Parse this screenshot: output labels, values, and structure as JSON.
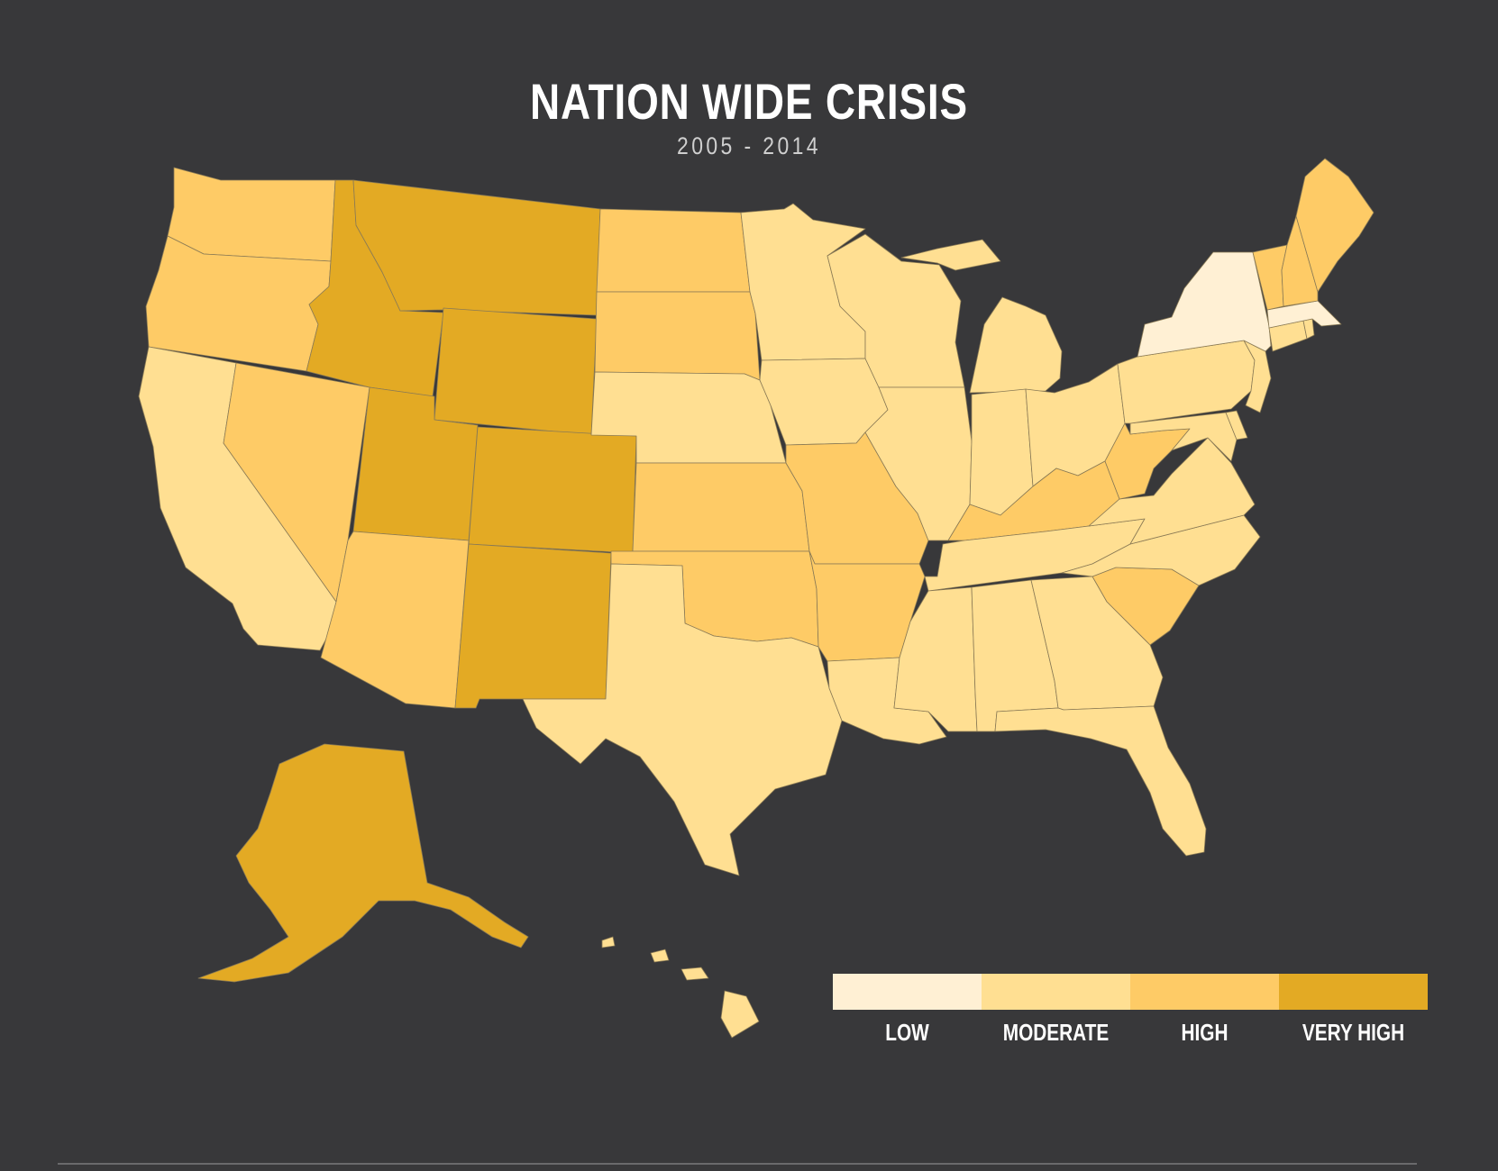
{
  "header": {
    "title": "NATION WIDE CRISIS",
    "subtitle": "2005 - 2014"
  },
  "background_color": "#38383a",
  "levels": {
    "LOW": "#fff0d4",
    "MODERATE": "#ffdf92",
    "HIGH": "#fecb66",
    "VERY HIGH": "#e3aa24"
  },
  "legend": {
    "items": [
      {
        "label": "LOW",
        "color": "#fff0d4"
      },
      {
        "label": "MODERATE",
        "color": "#ffdf92"
      },
      {
        "label": "HIGH",
        "color": "#fecb66"
      },
      {
        "label": "VERY HIGH",
        "color": "#e3aa24"
      }
    ]
  },
  "states": [
    {
      "name": "Washington",
      "level": "HIGH"
    },
    {
      "name": "Oregon",
      "level": "HIGH"
    },
    {
      "name": "California",
      "level": "MODERATE"
    },
    {
      "name": "Nevada",
      "level": "HIGH"
    },
    {
      "name": "Idaho",
      "level": "VERY HIGH"
    },
    {
      "name": "Montana",
      "level": "VERY HIGH"
    },
    {
      "name": "Wyoming",
      "level": "VERY HIGH"
    },
    {
      "name": "Utah",
      "level": "VERY HIGH"
    },
    {
      "name": "Colorado",
      "level": "VERY HIGH"
    },
    {
      "name": "Arizona",
      "level": "HIGH"
    },
    {
      "name": "New Mexico",
      "level": "VERY HIGH"
    },
    {
      "name": "North Dakota",
      "level": "HIGH"
    },
    {
      "name": "South Dakota",
      "level": "HIGH"
    },
    {
      "name": "Nebraska",
      "level": "MODERATE"
    },
    {
      "name": "Kansas",
      "level": "HIGH"
    },
    {
      "name": "Oklahoma",
      "level": "HIGH"
    },
    {
      "name": "Texas",
      "level": "MODERATE"
    },
    {
      "name": "Minnesota",
      "level": "MODERATE"
    },
    {
      "name": "Iowa",
      "level": "MODERATE"
    },
    {
      "name": "Missouri",
      "level": "HIGH"
    },
    {
      "name": "Arkansas",
      "level": "HIGH"
    },
    {
      "name": "Louisiana",
      "level": "MODERATE"
    },
    {
      "name": "Wisconsin",
      "level": "MODERATE"
    },
    {
      "name": "Illinois",
      "level": "MODERATE"
    },
    {
      "name": "Michigan",
      "level": "MODERATE"
    },
    {
      "name": "Indiana",
      "level": "MODERATE"
    },
    {
      "name": "Ohio",
      "level": "MODERATE"
    },
    {
      "name": "Kentucky",
      "level": "HIGH"
    },
    {
      "name": "Tennessee",
      "level": "MODERATE"
    },
    {
      "name": "Mississippi",
      "level": "MODERATE"
    },
    {
      "name": "Alabama",
      "level": "MODERATE"
    },
    {
      "name": "Georgia",
      "level": "MODERATE"
    },
    {
      "name": "Florida",
      "level": "MODERATE"
    },
    {
      "name": "South Carolina",
      "level": "HIGH"
    },
    {
      "name": "North Carolina",
      "level": "MODERATE"
    },
    {
      "name": "Virginia",
      "level": "MODERATE"
    },
    {
      "name": "West Virginia",
      "level": "HIGH"
    },
    {
      "name": "Pennsylvania",
      "level": "MODERATE"
    },
    {
      "name": "New York",
      "level": "LOW"
    },
    {
      "name": "New Jersey",
      "level": "MODERATE"
    },
    {
      "name": "Delaware",
      "level": "MODERATE"
    },
    {
      "name": "Maryland",
      "level": "MODERATE"
    },
    {
      "name": "Vermont",
      "level": "HIGH"
    },
    {
      "name": "New Hampshire",
      "level": "HIGH"
    },
    {
      "name": "Maine",
      "level": "HIGH"
    },
    {
      "name": "Massachusetts",
      "level": "LOW"
    },
    {
      "name": "Connecticut",
      "level": "MODERATE"
    },
    {
      "name": "Rhode Island",
      "level": "MODERATE"
    },
    {
      "name": "Alaska",
      "level": "VERY HIGH"
    },
    {
      "name": "Hawaii",
      "level": "MODERATE"
    }
  ]
}
